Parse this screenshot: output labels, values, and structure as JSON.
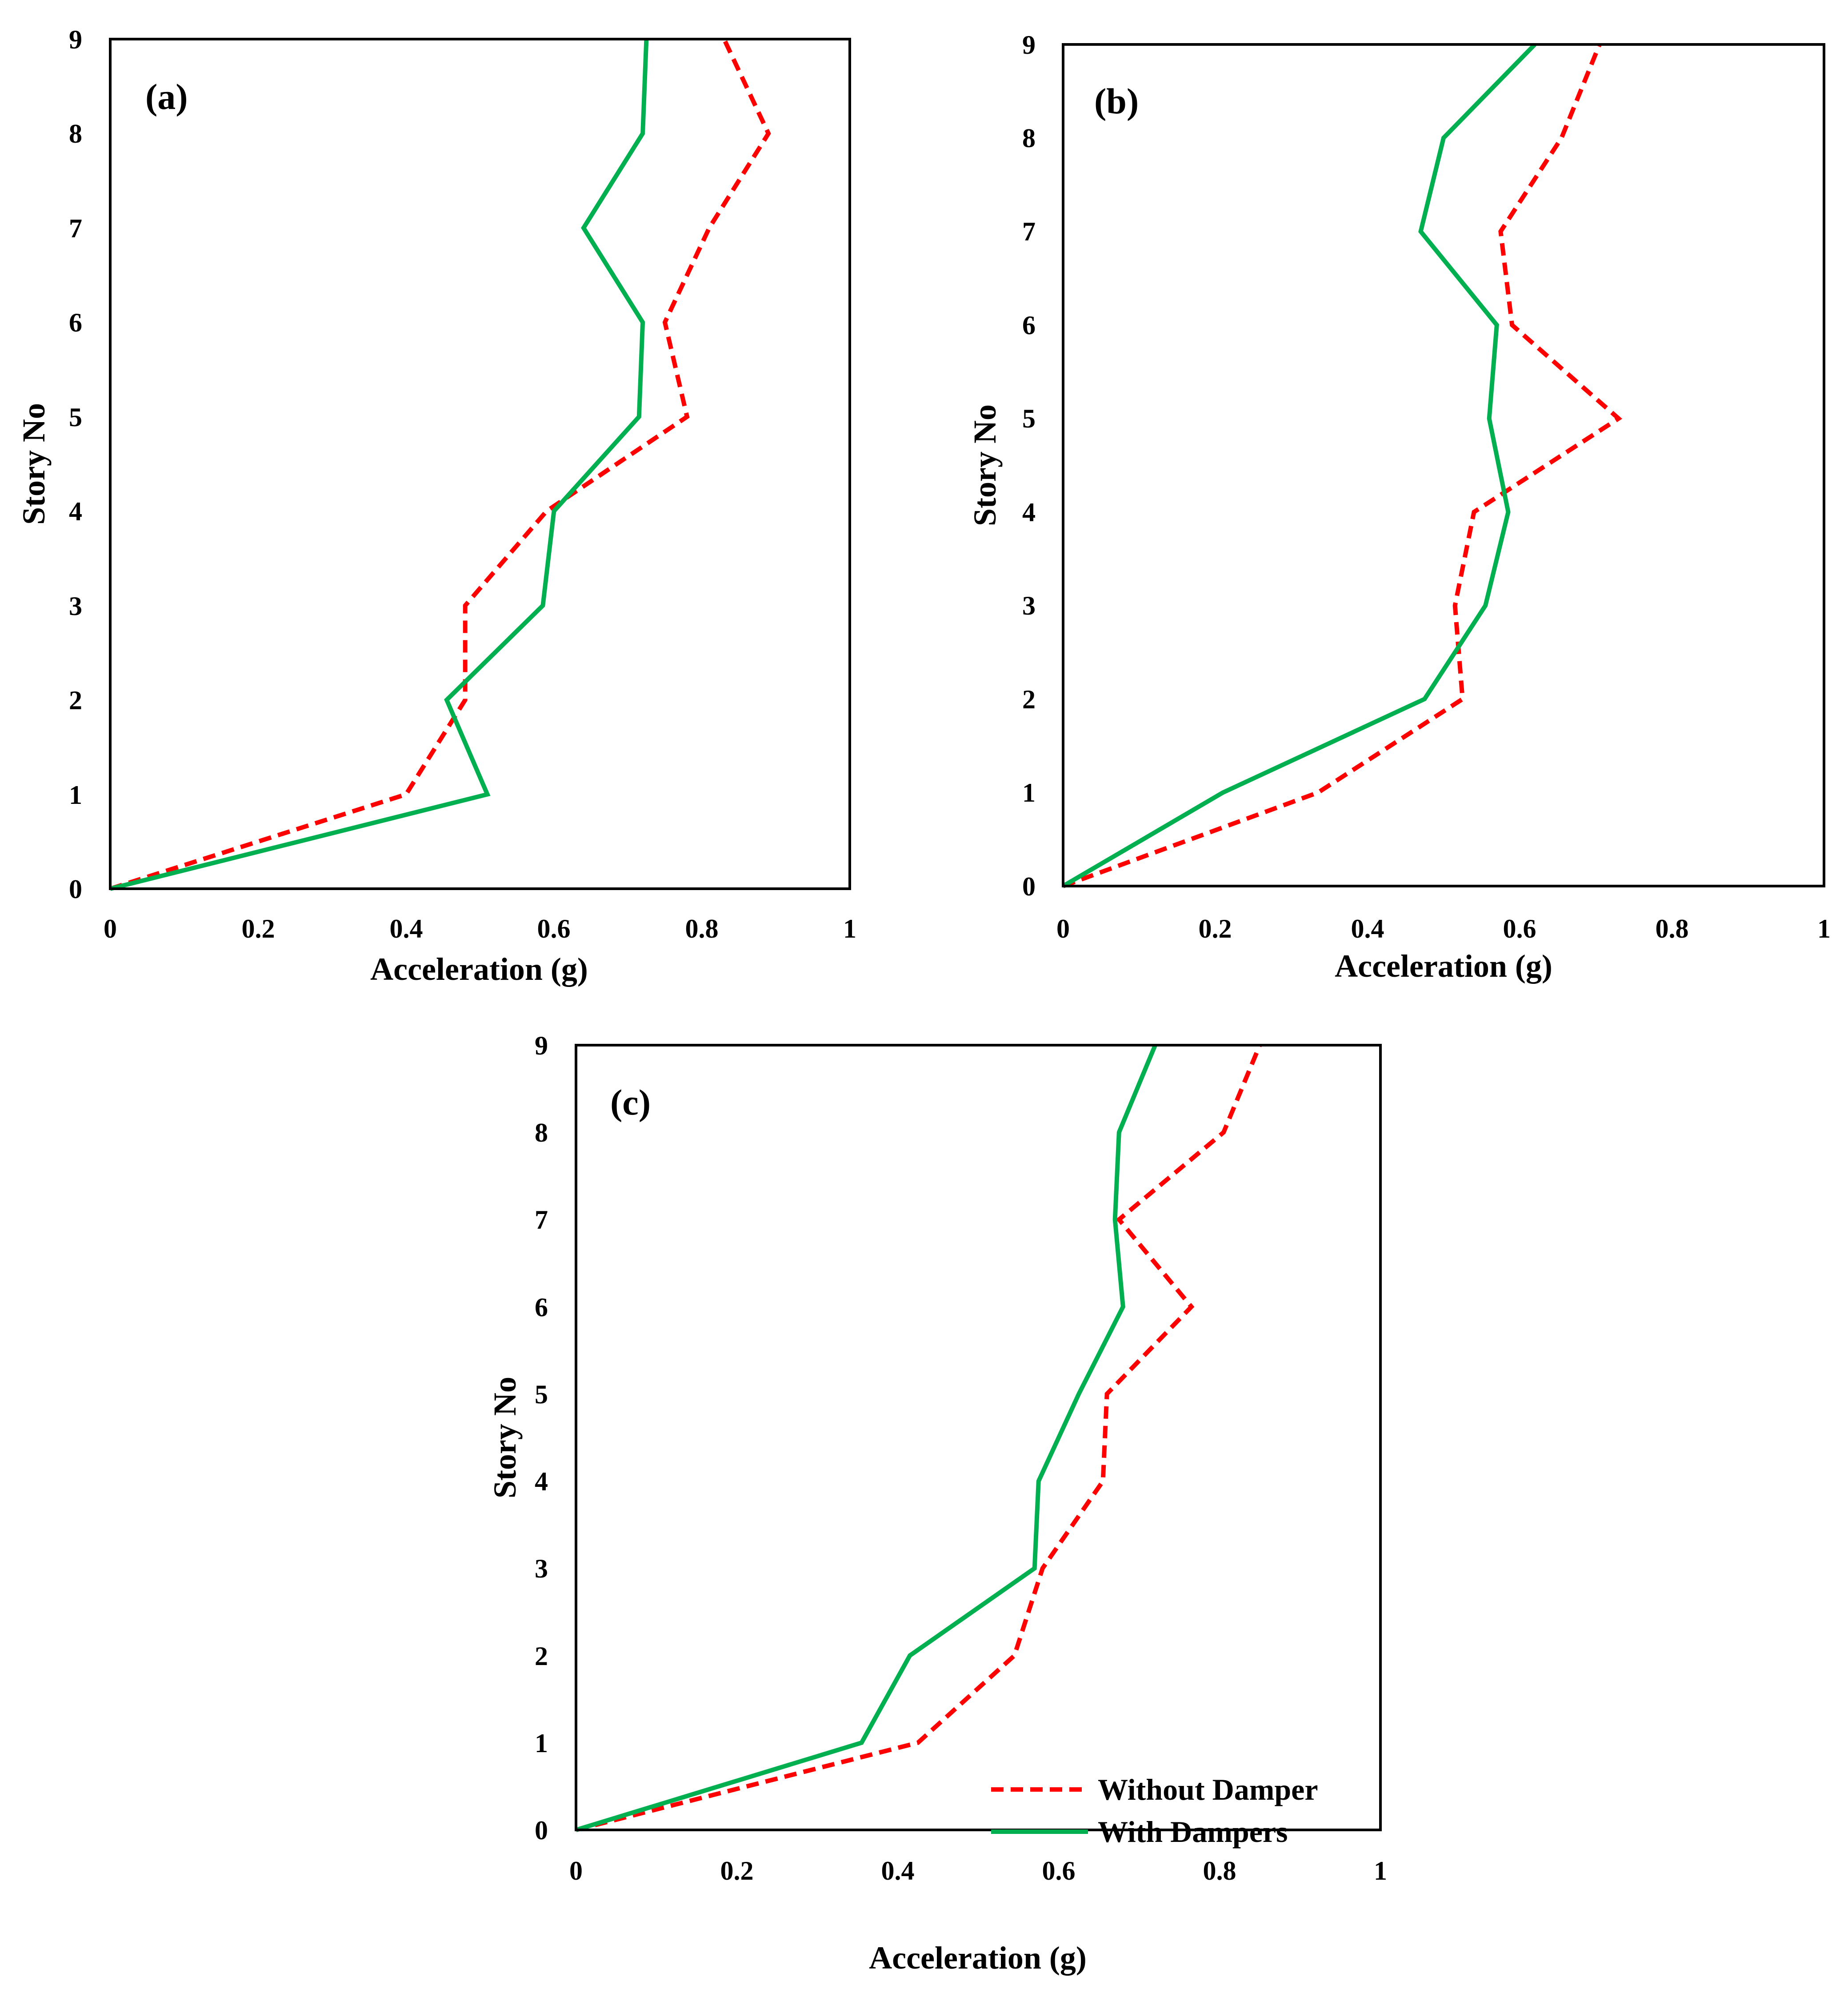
{
  "figure": {
    "legend": [
      {
        "label": "Without Damper",
        "style": "dashed",
        "color": "#ff0000"
      },
      {
        "label": "With Dampers",
        "style": "solid",
        "color": "#00b050"
      }
    ]
  },
  "chart_data": [
    {
      "type": "line",
      "panel_label": "(a)",
      "xlabel": "Acceleration (g)",
      "ylabel": "Story No",
      "xlim": [
        0,
        1
      ],
      "ylim": [
        0,
        9
      ],
      "x_ticks": [
        "0",
        "0.2",
        "0.4",
        "0.6",
        "0.8",
        "1"
      ],
      "y_ticks": [
        "0",
        "1",
        "2",
        "3",
        "4",
        "5",
        "6",
        "7",
        "8",
        "9"
      ],
      "grid": false,
      "series": [
        {
          "name": "Without Damper",
          "color": "#ff0000",
          "style": "dashed",
          "x": [
            0,
            0.4,
            0.48,
            0.48,
            0.59,
            0.78,
            0.75,
            0.81,
            0.89,
            0.83
          ],
          "y": [
            0,
            1,
            2,
            3,
            4,
            5,
            6,
            7,
            8,
            9
          ]
        },
        {
          "name": "With Dampers",
          "color": "#00b050",
          "style": "solid",
          "x": [
            0,
            0.51,
            0.455,
            0.585,
            0.6,
            0.715,
            0.72,
            0.64,
            0.72,
            0.725
          ],
          "y": [
            0,
            1,
            2,
            3,
            4,
            5,
            6,
            7,
            8,
            9
          ]
        }
      ]
    },
    {
      "type": "line",
      "panel_label": "(b)",
      "xlabel": "Acceleration (g)",
      "ylabel": "Story No",
      "xlim": [
        0,
        1
      ],
      "ylim": [
        0,
        9
      ],
      "x_ticks": [
        "0",
        "0.2",
        "0.4",
        "0.6",
        "0.8",
        "1"
      ],
      "y_ticks": [
        "0",
        "1",
        "2",
        "3",
        "4",
        "5",
        "6",
        "7",
        "8",
        "9"
      ],
      "grid": false,
      "series": [
        {
          "name": "Without Damper",
          "color": "#ff0000",
          "style": "dashed",
          "x": [
            0,
            0.335,
            0.525,
            0.515,
            0.54,
            0.73,
            0.59,
            0.575,
            0.655,
            0.705
          ],
          "y": [
            0,
            1,
            2,
            3,
            4,
            5,
            6,
            7,
            8,
            9
          ]
        },
        {
          "name": "With Dampers",
          "color": "#00b050",
          "style": "solid",
          "x": [
            0,
            0.21,
            0.475,
            0.555,
            0.585,
            0.56,
            0.57,
            0.47,
            0.5,
            0.62
          ],
          "y": [
            0,
            1,
            2,
            3,
            4,
            5,
            6,
            7,
            8,
            9
          ]
        }
      ]
    },
    {
      "type": "line",
      "panel_label": "(c)",
      "xlabel": "Acceleration (g)",
      "ylabel": "Story No",
      "xlim": [
        0,
        1
      ],
      "ylim": [
        0,
        9
      ],
      "x_ticks": [
        "0",
        "0.2",
        "0.4",
        "0.6",
        "0.8",
        "1"
      ],
      "y_ticks": [
        "0",
        "1",
        "2",
        "3",
        "4",
        "5",
        "6",
        "7",
        "8",
        "9"
      ],
      "grid": false,
      "legend_position": "bottom-right",
      "series": [
        {
          "name": "Without Damper",
          "color": "#ff0000",
          "style": "dashed",
          "x": [
            0,
            0.425,
            0.545,
            0.58,
            0.655,
            0.66,
            0.765,
            0.675,
            0.805,
            0.85
          ],
          "y": [
            0,
            1,
            2,
            3,
            4,
            5,
            6,
            7,
            8,
            9
          ]
        },
        {
          "name": "With Dampers",
          "color": "#00b050",
          "style": "solid",
          "x": [
            0,
            0.355,
            0.415,
            0.57,
            0.575,
            0.625,
            0.68,
            0.67,
            0.675,
            0.72
          ],
          "y": [
            0,
            1,
            2,
            3,
            4,
            5,
            6,
            7,
            8,
            9
          ]
        }
      ]
    }
  ]
}
